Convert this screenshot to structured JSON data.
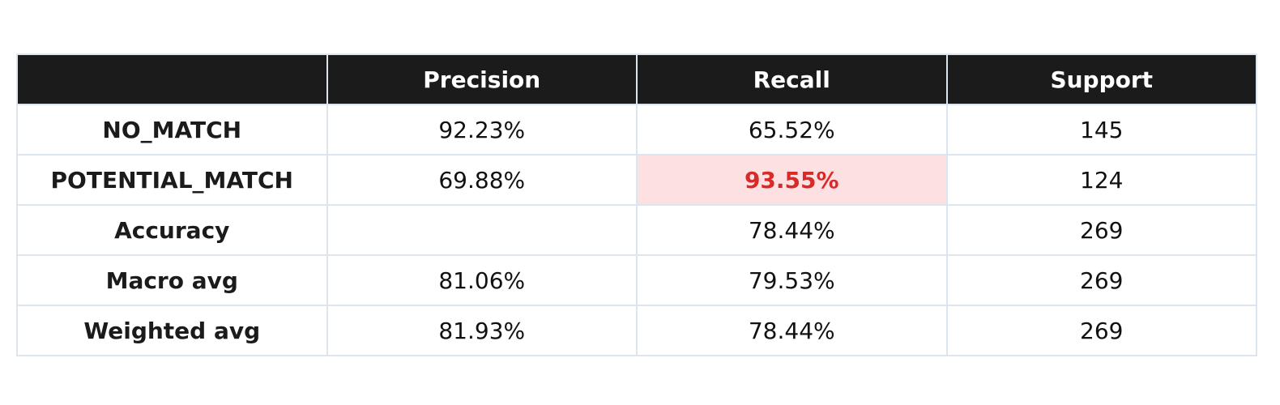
{
  "chart_data": {
    "type": "table",
    "columns": [
      "",
      "Precision",
      "Recall",
      "Support"
    ],
    "rows": [
      {
        "label": "NO_MATCH",
        "precision": "92.23%",
        "recall": "65.52%",
        "support": "145"
      },
      {
        "label": "POTENTIAL_MATCH",
        "precision": "69.88%",
        "recall": "93.55%",
        "support": "124"
      },
      {
        "label": "Accuracy",
        "precision": "",
        "recall": "78.44%",
        "support": "269"
      },
      {
        "label": "Macro avg",
        "precision": "81.06%",
        "recall": "79.53%",
        "support": "269"
      },
      {
        "label": "Weighted avg",
        "precision": "81.93%",
        "recall": "78.44%",
        "support": "269"
      }
    ],
    "highlight": {
      "row": 1,
      "column": "recall"
    }
  },
  "colors": {
    "header_background": "#1b1b1b",
    "header_text": "#ffffff",
    "grid_line": "#dde6ee",
    "highlight_background": "#fde1e2",
    "highlight_text": "#d92a2a"
  }
}
